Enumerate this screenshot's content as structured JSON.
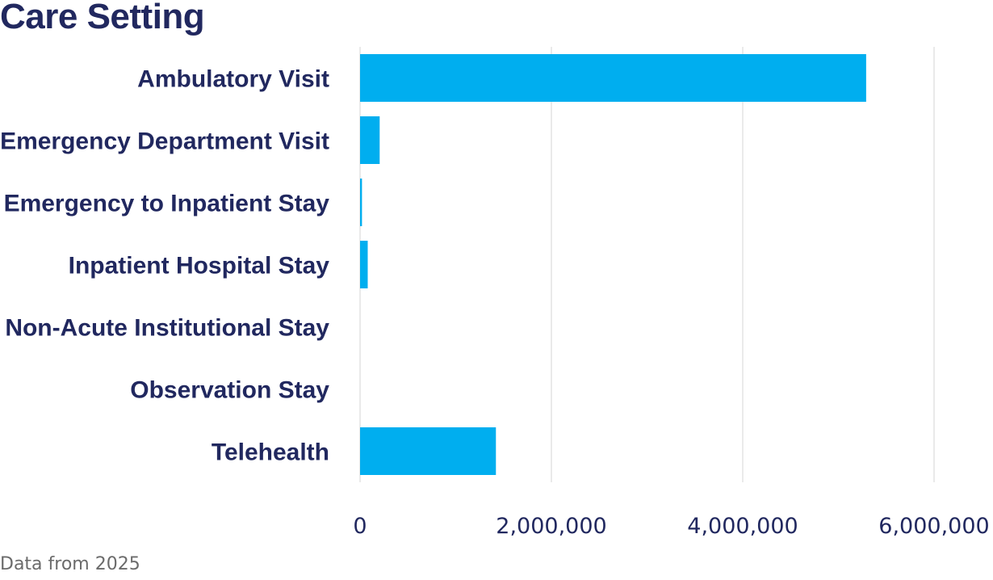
{
  "chart_data": {
    "type": "bar",
    "orientation": "horizontal",
    "title": "Care Setting",
    "categories": [
      "Ambulatory Visit",
      "Emergency Department Visit",
      "Emergency to Inpatient Stay",
      "Inpatient Hospital Stay",
      "Non-Acute Institutional Stay",
      "Observation Stay",
      "Telehealth"
    ],
    "values": [
      5290000,
      205000,
      20000,
      80000,
      0,
      0,
      1420000
    ],
    "xlim": [
      0,
      6000000
    ],
    "x_ticks": [
      "0",
      "2,000,000",
      "4,000,000",
      "6,000,000"
    ],
    "x_tick_values": [
      0,
      2000000,
      4000000,
      6000000
    ],
    "xlabel": "",
    "ylabel": "",
    "grid": "vertical",
    "bar_color": "#00aeef",
    "text_color": "#21285f",
    "grid_color": "#e3e3e3"
  },
  "footnote": "Data from 2025"
}
